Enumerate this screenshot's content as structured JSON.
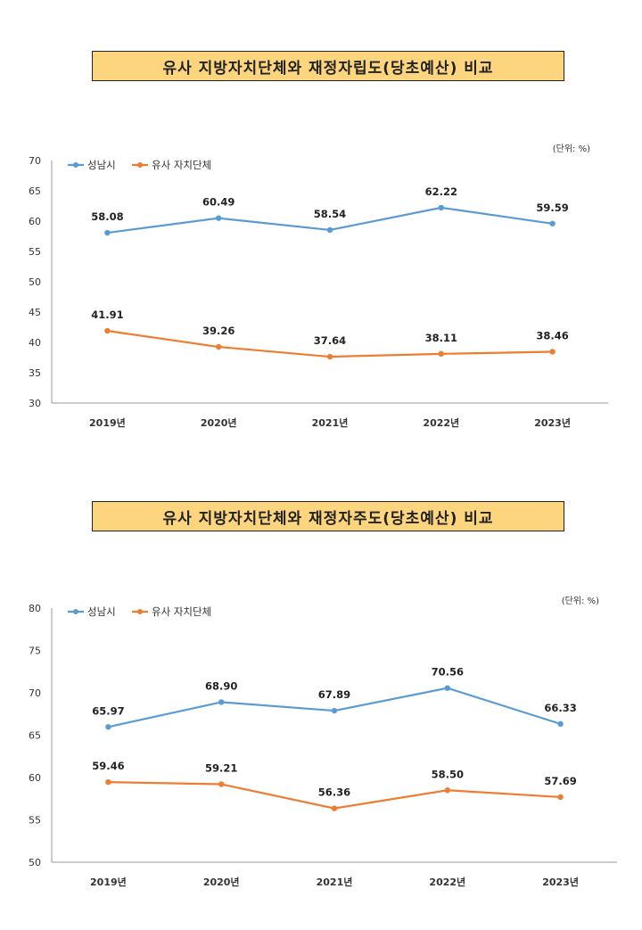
{
  "chart_data": [
    {
      "type": "line",
      "title": "유사 지방자치단체와 재정자립도(당초예산) 비교",
      "unit_label": "(단위: %)",
      "categories": [
        "2019년",
        "2020년",
        "2021년",
        "2022년",
        "2023년"
      ],
      "series": [
        {
          "name": "성남시",
          "values": [
            58.08,
            60.49,
            58.54,
            62.22,
            59.59
          ],
          "labels": [
            "58.08",
            "60.49",
            "58.54",
            "62.22",
            "59.59"
          ],
          "color": "#5b9bd5"
        },
        {
          "name": "유사 자치단체",
          "values": [
            41.91,
            39.26,
            37.64,
            38.11,
            38.46
          ],
          "labels": [
            "41.91",
            "39.26",
            "37.64",
            "38.11",
            "38.46"
          ],
          "color": "#ed7d31"
        }
      ],
      "ylim": [
        30,
        70
      ],
      "yticks": [
        "30",
        "35",
        "40",
        "45",
        "50",
        "55",
        "60",
        "65",
        "70"
      ],
      "legend": "top-left",
      "grid": false
    },
    {
      "type": "line",
      "title": "유사 지방자치단체와 재정자주도(당초예산) 비교",
      "unit_label": "(단위: %)",
      "categories": [
        "2019년",
        "2020년",
        "2021년",
        "2022년",
        "2023년"
      ],
      "series": [
        {
          "name": "성남시",
          "values": [
            65.97,
            68.9,
            67.89,
            70.56,
            66.33
          ],
          "labels": [
            "65.97",
            "68.90",
            "67.89",
            "70.56",
            "66.33"
          ],
          "color": "#5b9bd5"
        },
        {
          "name": "유사 자치단체",
          "values": [
            59.46,
            59.21,
            56.36,
            58.5,
            57.69
          ],
          "labels": [
            "59.46",
            "59.21",
            "56.36",
            "58.50",
            "57.69"
          ],
          "color": "#ed7d31"
        }
      ],
      "ylim": [
        50,
        80
      ],
      "yticks": [
        "50",
        "55",
        "60",
        "65",
        "70",
        "75",
        "80"
      ],
      "legend": "top-left",
      "grid": false
    }
  ]
}
